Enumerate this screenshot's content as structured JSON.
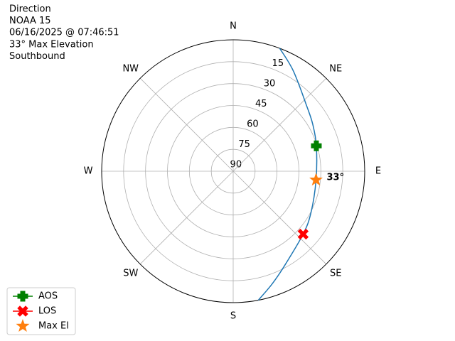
{
  "chart_data": {
    "type": "polar",
    "title_lines": [
      "Direction",
      "NOAA 15",
      "06/16/2025 @ 07:46:51",
      "33° Max Elevation",
      "Southbound"
    ],
    "theta_direction": "clockwise",
    "theta_zero": "N",
    "thetaticks": [
      {
        "value": 0,
        "label": "N"
      },
      {
        "value": 45,
        "label": "NE"
      },
      {
        "value": 90,
        "label": "E"
      },
      {
        "value": 135,
        "label": "SE"
      },
      {
        "value": 180,
        "label": "S"
      },
      {
        "value": 225,
        "label": "SW"
      },
      {
        "value": 270,
        "label": "W"
      },
      {
        "value": 315,
        "label": "NW"
      }
    ],
    "ylim": [
      90,
      0
    ],
    "yticks": [
      15,
      30,
      45,
      60,
      75,
      90
    ],
    "grid": true,
    "legend_position": "lower left",
    "series": [
      {
        "color": "#1f77b4",
        "marker": "none",
        "x": [
          20.7,
          31,
          49,
          59.5,
          73,
          96,
          118,
          132,
          152,
          161,
          169
        ],
        "values": [
          0,
          10,
          23,
          26.8,
          30.5,
          33,
          29.7,
          25.6,
          16,
          8.3,
          0
        ]
      },
      {
        "name": "AOS",
        "color": "#008000",
        "marker": "plus",
        "x": [
          73
        ],
        "values": [
          30.5
        ]
      },
      {
        "name": "LOS",
        "color": "#ff0000",
        "marker": "x",
        "x": [
          132
        ],
        "values": [
          25.6
        ]
      },
      {
        "name": "Max El",
        "color": "#ff7f0e",
        "marker": "star",
        "x": [
          96
        ],
        "values": [
          33
        ],
        "value_labels": [
          "33°"
        ]
      }
    ]
  }
}
